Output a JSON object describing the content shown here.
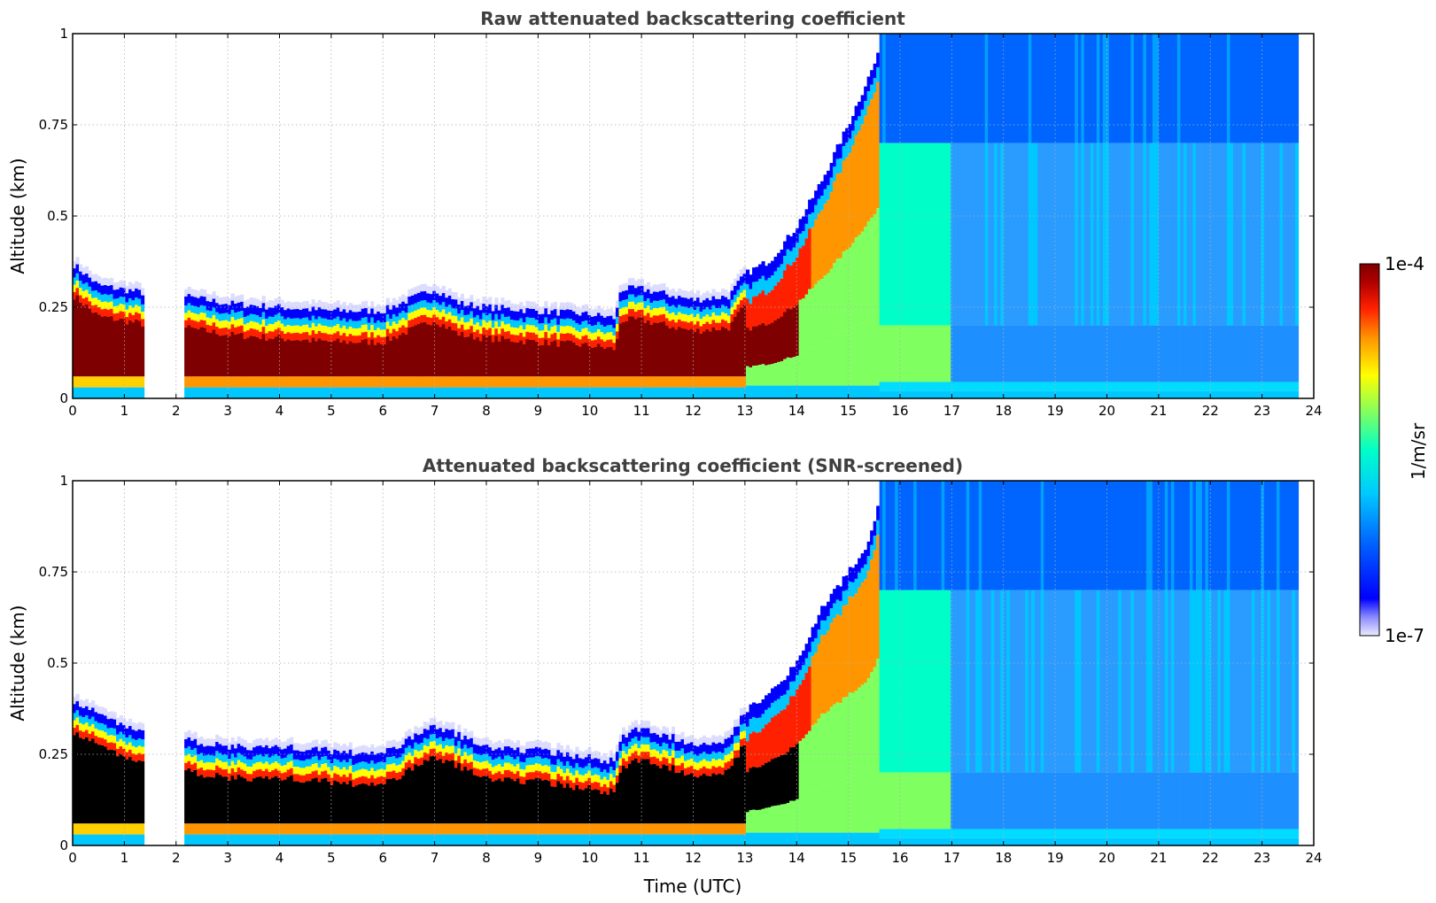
{
  "chart_data": [
    {
      "type": "heatmap",
      "title": "Raw attenuated backscattering coefficient",
      "xlabel": "",
      "ylabel": "Altitude (km)",
      "xlim": [
        0,
        24
      ],
      "ylim": [
        0,
        1
      ],
      "xticks": [
        "0",
        "1",
        "2",
        "3",
        "4",
        "5",
        "6",
        "7",
        "8",
        "9",
        "10",
        "11",
        "12",
        "13",
        "14",
        "15",
        "16",
        "17",
        "18",
        "19",
        "20",
        "21",
        "22",
        "23",
        "24"
      ],
      "yticks": [
        "0",
        "0.25",
        "0.5",
        "0.75",
        "1"
      ],
      "grid": true,
      "data_gaps_hours": [
        [
          1.4,
          2.15
        ],
        [
          23.7,
          24
        ]
      ],
      "layer_top_km": [
        [
          0,
          0.37
        ],
        [
          0.5,
          0.31
        ],
        [
          1.35,
          0.29
        ],
        [
          2.15,
          0.28
        ],
        [
          3,
          0.26
        ],
        [
          4,
          0.25
        ],
        [
          5,
          0.24
        ],
        [
          6,
          0.24
        ],
        [
          7,
          0.3
        ],
        [
          7.5,
          0.26
        ],
        [
          8,
          0.25
        ],
        [
          9,
          0.24
        ],
        [
          10,
          0.23
        ],
        [
          10.5,
          0.22
        ],
        [
          10.6,
          0.3
        ],
        [
          11,
          0.3
        ],
        [
          12,
          0.27
        ],
        [
          12.7,
          0.28
        ],
        [
          13,
          0.34
        ],
        [
          13.5,
          0.38
        ],
        [
          14,
          0.47
        ],
        [
          14.5,
          0.6
        ],
        [
          15,
          0.75
        ],
        [
          15.3,
          0.85
        ],
        [
          15.7,
          0.98
        ],
        [
          24,
          1.0
        ]
      ]
    },
    {
      "type": "heatmap",
      "title": "Attenuated backscattering coefficient (SNR-screened)",
      "xlabel": "Time (UTC)",
      "ylabel": "Altitude (km)",
      "xlim": [
        0,
        24
      ],
      "ylim": [
        0,
        1
      ],
      "xticks": [
        "0",
        "1",
        "2",
        "3",
        "4",
        "5",
        "6",
        "7",
        "8",
        "9",
        "10",
        "11",
        "12",
        "13",
        "14",
        "15",
        "16",
        "17",
        "18",
        "19",
        "20",
        "21",
        "22",
        "23",
        "24"
      ],
      "yticks": [
        "0",
        "0.25",
        "0.5",
        "0.75",
        "1"
      ],
      "grid": true,
      "data_gaps_hours": [
        [
          1.4,
          2.15
        ],
        [
          23.7,
          24
        ]
      ],
      "layer_top_km": [
        [
          0,
          0.4
        ],
        [
          0.5,
          0.36
        ],
        [
          1.35,
          0.31
        ],
        [
          2.15,
          0.29
        ],
        [
          3,
          0.27
        ],
        [
          4,
          0.27
        ],
        [
          5,
          0.26
        ],
        [
          6,
          0.25
        ],
        [
          7,
          0.33
        ],
        [
          7.5,
          0.3
        ],
        [
          8,
          0.27
        ],
        [
          9,
          0.26
        ],
        [
          10,
          0.24
        ],
        [
          10.5,
          0.23
        ],
        [
          10.6,
          0.3
        ],
        [
          11,
          0.32
        ],
        [
          12,
          0.28
        ],
        [
          12.7,
          0.29
        ],
        [
          13,
          0.37
        ],
        [
          13.5,
          0.42
        ],
        [
          14,
          0.5
        ],
        [
          14.5,
          0.65
        ],
        [
          15,
          0.75
        ],
        [
          15.3,
          0.8
        ],
        [
          15.7,
          0.98
        ],
        [
          24,
          1.0
        ]
      ]
    }
  ],
  "colorbar": {
    "label": "1/m/sr",
    "max_label": "1e-4",
    "min_label": "1e-7",
    "colors": [
      "#ebebff",
      "#5a5aff",
      "#0000ff",
      "#0064ff",
      "#00c8ff",
      "#00ffc8",
      "#80ff60",
      "#ffff00",
      "#ff9600",
      "#ff2000",
      "#b00000",
      "#7f0000"
    ]
  }
}
